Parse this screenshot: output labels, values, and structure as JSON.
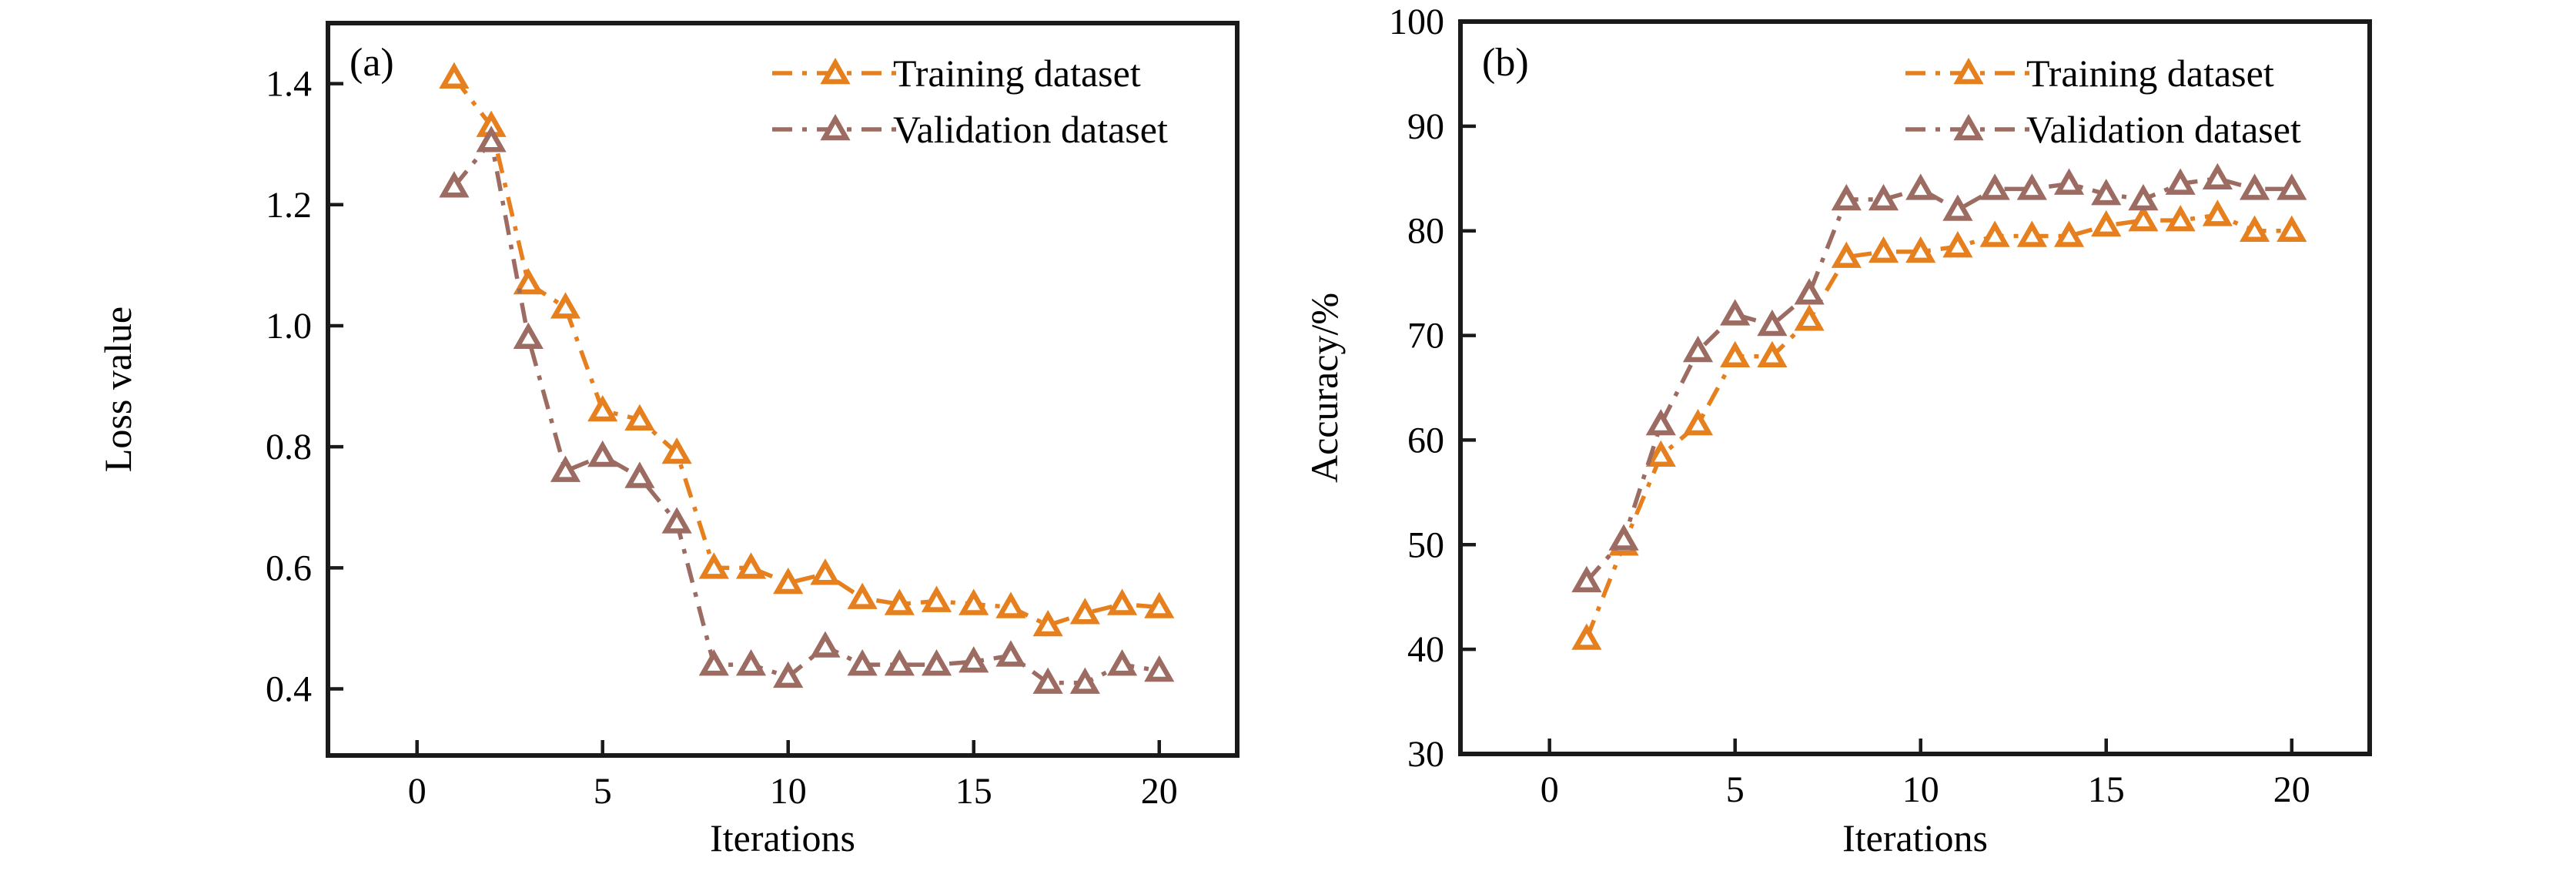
{
  "figure": {
    "background": "#FFFFFF",
    "description": "Two-panel line chart figure: (a) loss curves, (b) accuracy curves over training iterations"
  },
  "colors": {
    "training": "#E6801F",
    "validation": "#9C6B62",
    "axis": "#1A1A1A",
    "text": "#000000",
    "marker_fill": "#FFFFFF"
  },
  "legend": {
    "items": [
      {
        "label": "Training dataset",
        "color_key": "training"
      },
      {
        "label": "Validation dataset",
        "color_key": "validation"
      }
    ],
    "position": "top-right",
    "marker": "dash-triangle-dash-dot"
  },
  "chart_data": [
    {
      "type": "line",
      "panel_label": "(a)",
      "title": "",
      "xlabel": "Iterations",
      "ylabel": "Loss value",
      "x": [
        1,
        2,
        3,
        4,
        5,
        6,
        7,
        8,
        9,
        10,
        11,
        12,
        13,
        14,
        15,
        16,
        17,
        18,
        19,
        20
      ],
      "series": [
        {
          "name": "Training dataset",
          "color_key": "training",
          "values": [
            1.41,
            1.33,
            1.07,
            1.03,
            0.86,
            0.845,
            0.79,
            0.6,
            0.6,
            0.575,
            0.59,
            0.55,
            0.54,
            0.545,
            0.54,
            0.535,
            0.505,
            0.525,
            0.54,
            0.535
          ]
        },
        {
          "name": "Validation dataset",
          "color_key": "validation",
          "values": [
            1.23,
            1.305,
            0.98,
            0.76,
            0.785,
            0.75,
            0.675,
            0.44,
            0.44,
            0.42,
            0.47,
            0.44,
            0.44,
            0.44,
            0.445,
            0.455,
            0.41,
            0.41,
            0.44,
            0.43
          ]
        }
      ],
      "xlim": [
        -2.4,
        22.1
      ],
      "ylim": [
        0.29,
        1.5
      ],
      "xticks": {
        "values": [
          0,
          5,
          10,
          15,
          20
        ],
        "labels": [
          "0",
          "5",
          "10",
          "15",
          "20"
        ]
      },
      "yticks": {
        "values": [
          0.4,
          0.6,
          0.8,
          1.0,
          1.2,
          1.4
        ],
        "labels": [
          "0.4",
          "0.6",
          "0.8",
          "1.0",
          "1.2",
          "1.4"
        ]
      },
      "grid": false,
      "line_style": "dash-dot",
      "marker": "open-triangle-up",
      "legend_position": "top-right"
    },
    {
      "type": "line",
      "panel_label": "(b)",
      "title": "",
      "xlabel": "Iterations",
      "ylabel": "Accuracy/%",
      "x": [
        1,
        2,
        3,
        4,
        5,
        6,
        7,
        8,
        9,
        10,
        11,
        12,
        13,
        14,
        15,
        16,
        17,
        18,
        19,
        20
      ],
      "series": [
        {
          "name": "Training dataset",
          "color_key": "training",
          "values": [
            41,
            50,
            58.5,
            61.5,
            68,
            68,
            71.5,
            77.5,
            78,
            78,
            78.5,
            79.5,
            79.5,
            79.5,
            80.5,
            81,
            81,
            81.5,
            80,
            80
          ]
        },
        {
          "name": "Validation dataset",
          "color_key": "validation",
          "values": [
            46.5,
            50.5,
            61.5,
            68.5,
            72,
            71,
            74,
            83,
            83,
            84,
            82,
            84,
            84,
            84.5,
            83.5,
            83,
            84.5,
            85,
            84,
            84
          ]
        }
      ],
      "xlim": [
        -2.4,
        22.1
      ],
      "ylim": [
        30,
        100
      ],
      "xticks": {
        "values": [
          0,
          5,
          10,
          15,
          20
        ],
        "labels": [
          "0",
          "5",
          "10",
          "15",
          "20"
        ]
      },
      "yticks": {
        "values": [
          30,
          40,
          50,
          60,
          70,
          80,
          90,
          100
        ],
        "labels": [
          "30",
          "40",
          "50",
          "60",
          "70",
          "80",
          "90",
          "100"
        ]
      },
      "grid": false,
      "line_style": "dash-dot",
      "marker": "open-triangle-up",
      "legend_position": "top-right"
    }
  ]
}
